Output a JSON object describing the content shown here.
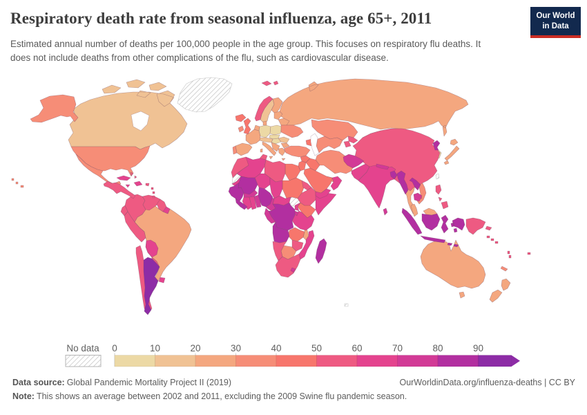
{
  "header": {
    "title": "Respiratory death rate from seasonal influenza, age 65+, 2011",
    "subtitle": "Estimated annual number of deaths per 100,000 people in the age group. This focuses on respiratory flu deaths. It does not include deaths from other complications of the flu, such as cardiovascular disease.",
    "logo": {
      "line1": "Our World",
      "line2": "in Data",
      "bg_color": "#12294e",
      "accent_color": "#cb2d24"
    }
  },
  "legend": {
    "no_data_label": "No data",
    "ticks": [
      "0",
      "10",
      "20",
      "30",
      "40",
      "50",
      "60",
      "70",
      "80",
      "90"
    ],
    "bin_colors": [
      "#ecd9a5",
      "#f0c294",
      "#f4a77f",
      "#f68d77",
      "#f7766c",
      "#ee5a82",
      "#e4438e",
      "#d23a96",
      "#b22fa0",
      "#8d2ca6"
    ],
    "text_color": "#5f5f5f",
    "hatch_line_color": "#c9c9c9",
    "hatch_border_color": "#b5b5b5"
  },
  "footer": {
    "source_label": "Data source:",
    "source_text": "Global Pandemic Mortality Project II (2019)",
    "link_text": "OurWorldinData.org/influenza-deaths | CC BY",
    "note_label": "Note:",
    "note_text": "This shows an average between 2002 and 2011, excluding the 2009 Swine flu pandemic season."
  },
  "chart_data": {
    "type": "choropleth_map",
    "title": "Respiratory death rate from seasonal influenza, age 65+, 2011",
    "unit": "deaths per 100,000 people aged 65+",
    "bin_labels": [
      "0-10",
      "10-20",
      "20-30",
      "30-40",
      "40-50",
      "50-60",
      "60-70",
      "70-80",
      "80-90",
      "90+"
    ],
    "no_data_bin_label": "No data",
    "legend_position": "bottom",
    "countries": [
      {
        "id": "greenland",
        "name": "Greenland",
        "bin": -1
      },
      {
        "id": "western-sahara",
        "name": "Western Sahara",
        "bin": -1
      },
      {
        "id": "south-sudan",
        "name": "South Sudan",
        "bin": -1
      },
      {
        "id": "taiwan",
        "name": "Taiwan",
        "bin": -1
      },
      {
        "id": "kerguelen-islands",
        "name": "Kerguelen Islands",
        "bin": -1
      },
      {
        "id": "germany",
        "name": "Germany",
        "bin": 0
      },
      {
        "id": "poland",
        "name": "Poland",
        "bin": 0
      },
      {
        "id": "czechia-slovakia",
        "name": "Czechia and Slovakia",
        "bin": 0
      },
      {
        "id": "hungary",
        "name": "Hungary",
        "bin": 0
      },
      {
        "id": "south-korea",
        "name": "South Korea",
        "bin": 0
      },
      {
        "id": "canada",
        "name": "Canada",
        "bin": 1
      },
      {
        "id": "sweden",
        "name": "Sweden",
        "bin": 1
      },
      {
        "id": "romania",
        "name": "Romania",
        "bin": 1
      },
      {
        "id": "austria-switzerland",
        "name": "Austria and Switzerland",
        "bin": 1
      },
      {
        "id": "russia",
        "name": "Russia",
        "bin": 2
      },
      {
        "id": "brazil",
        "name": "Brazil",
        "bin": 2
      },
      {
        "id": "france",
        "name": "France",
        "bin": 2
      },
      {
        "id": "benelux",
        "name": "Benelux",
        "bin": 2
      },
      {
        "id": "spain",
        "name": "Spain",
        "bin": 2
      },
      {
        "id": "italy",
        "name": "Italy",
        "bin": 2
      },
      {
        "id": "finland",
        "name": "Finland",
        "bin": 2
      },
      {
        "id": "denmark",
        "name": "Denmark",
        "bin": 2
      },
      {
        "id": "balkans",
        "name": "Balkans",
        "bin": 2
      },
      {
        "id": "bulgaria",
        "name": "Bulgaria",
        "bin": 2
      },
      {
        "id": "greece",
        "name": "Greece",
        "bin": 2
      },
      {
        "id": "baltic-states",
        "name": "Baltic States",
        "bin": 2
      },
      {
        "id": "belarus",
        "name": "Belarus",
        "bin": 2
      },
      {
        "id": "japan",
        "name": "Japan",
        "bin": 2
      },
      {
        "id": "mongolia",
        "name": "Mongolia",
        "bin": 2
      },
      {
        "id": "thailand",
        "name": "Thailand",
        "bin": 2
      },
      {
        "id": "malaysia",
        "name": "Malaysia",
        "bin": 2
      },
      {
        "id": "australia",
        "name": "Australia",
        "bin": 2
      },
      {
        "id": "new-zealand",
        "name": "New Zealand",
        "bin": 2
      },
      {
        "id": "malawi",
        "name": "Malawi",
        "bin": 2
      },
      {
        "id": "united-states",
        "name": "United States",
        "bin": 3
      },
      {
        "id": "mexico",
        "name": "Mexico",
        "bin": 3
      },
      {
        "id": "portugal",
        "name": "Portugal",
        "bin": 3
      },
      {
        "id": "ireland",
        "name": "Ireland",
        "bin": 3
      },
      {
        "id": "ukraine",
        "name": "Ukraine",
        "bin": 3
      },
      {
        "id": "turkey",
        "name": "Turkey",
        "bin": 3
      },
      {
        "id": "kazakhstan",
        "name": "Kazakhstan",
        "bin": 3
      },
      {
        "id": "central-asia",
        "name": "Uzbekistan and Turkmenistan",
        "bin": 3
      },
      {
        "id": "iran",
        "name": "Iran",
        "bin": 3
      },
      {
        "id": "uae",
        "name": "United Arab Emirates",
        "bin": 3
      },
      {
        "id": "vietnam",
        "name": "Vietnam",
        "bin": 3
      },
      {
        "id": "botswana",
        "name": "Botswana",
        "bin": 3
      },
      {
        "id": "new-caledonia",
        "name": "New Caledonia",
        "bin": 3
      },
      {
        "id": "united-kingdom",
        "name": "United Kingdom",
        "bin": 4
      },
      {
        "id": "iceland",
        "name": "Iceland",
        "bin": 4
      },
      {
        "id": "caucasus",
        "name": "Caucasus",
        "bin": 4
      },
      {
        "id": "syria",
        "name": "Syria",
        "bin": 4
      },
      {
        "id": "iraq",
        "name": "Iraq",
        "bin": 4
      },
      {
        "id": "israel-jordan",
        "name": "Israel and Jordan",
        "bin": 4
      },
      {
        "id": "saudi-arabia",
        "name": "Saudi Arabia",
        "bin": 4
      },
      {
        "id": "egypt",
        "name": "Egypt",
        "bin": 4
      },
      {
        "id": "sudan",
        "name": "Sudan",
        "bin": 4
      },
      {
        "id": "kenya",
        "name": "Kenya",
        "bin": 4
      },
      {
        "id": "zambia",
        "name": "Zambia",
        "bin": 4
      },
      {
        "id": "norway",
        "name": "Norway",
        "bin": 5
      },
      {
        "id": "morocco",
        "name": "Morocco",
        "bin": 5
      },
      {
        "id": "tunisia",
        "name": "Tunisia",
        "bin": 5
      },
      {
        "id": "libya",
        "name": "Libya",
        "bin": 5
      },
      {
        "id": "eritrea",
        "name": "Eritrea",
        "bin": 5
      },
      {
        "id": "ethiopia",
        "name": "Ethiopia",
        "bin": 5
      },
      {
        "id": "zimbabwe",
        "name": "Zimbabwe",
        "bin": 5
      },
      {
        "id": "namibia",
        "name": "Namibia",
        "bin": 5
      },
      {
        "id": "south-africa",
        "name": "South Africa",
        "bin": 5
      },
      {
        "id": "china",
        "name": "China",
        "bin": 5
      },
      {
        "id": "kyrgyzstan",
        "name": "Kyrgyzstan",
        "bin": 5
      },
      {
        "id": "tajikistan",
        "name": "Tajikistan",
        "bin": 5
      },
      {
        "id": "philippines",
        "name": "Philippines",
        "bin": 5
      },
      {
        "id": "papua-new-guinea",
        "name": "Papua New Guinea",
        "bin": 5
      },
      {
        "id": "solomon-islands",
        "name": "Solomon Islands",
        "bin": 5
      },
      {
        "id": "vanuatu",
        "name": "Vanuatu",
        "bin": 5
      },
      {
        "id": "fiji",
        "name": "Fiji",
        "bin": 5
      },
      {
        "id": "colombia",
        "name": "Colombia",
        "bin": 5
      },
      {
        "id": "venezuela",
        "name": "Venezuela",
        "bin": 5
      },
      {
        "id": "guyana",
        "name": "Guyana",
        "bin": 5
      },
      {
        "id": "ecuador",
        "name": "Ecuador",
        "bin": 5
      },
      {
        "id": "peru",
        "name": "Peru",
        "bin": 5
      },
      {
        "id": "chile",
        "name": "Chile",
        "bin": 5
      },
      {
        "id": "paraguay",
        "name": "Paraguay",
        "bin": 5
      },
      {
        "id": "central-america",
        "name": "Central America",
        "bin": 5
      },
      {
        "id": "lesser-antilles",
        "name": "Lesser Antilles",
        "bin": 5
      },
      {
        "id": "puerto-rico",
        "name": "Puerto Rico",
        "bin": 5
      },
      {
        "id": "bahamas",
        "name": "Bahamas",
        "bin": 5
      },
      {
        "id": "algeria",
        "name": "Algeria",
        "bin": 6
      },
      {
        "id": "mauritania",
        "name": "Mauritania",
        "bin": 6
      },
      {
        "id": "niger",
        "name": "Niger",
        "bin": 6
      },
      {
        "id": "chad",
        "name": "Chad",
        "bin": 6
      },
      {
        "id": "somalia",
        "name": "Somalia",
        "bin": 6
      },
      {
        "id": "ivory-coast",
        "name": "Cote d'Ivoire",
        "bin": 6
      },
      {
        "id": "ghana",
        "name": "Ghana",
        "bin": 6
      },
      {
        "id": "central-african-republic",
        "name": "Central African Republic",
        "bin": 6
      },
      {
        "id": "uganda",
        "name": "Uganda",
        "bin": 6
      },
      {
        "id": "tanzania",
        "name": "Tanzania",
        "bin": 6
      },
      {
        "id": "mozambique",
        "name": "Mozambique",
        "bin": 6
      },
      {
        "id": "yemen",
        "name": "Yemen",
        "bin": 6
      },
      {
        "id": "oman",
        "name": "Oman",
        "bin": 6
      },
      {
        "id": "pakistan",
        "name": "Pakistan",
        "bin": 6
      },
      {
        "id": "india",
        "name": "India",
        "bin": 6
      },
      {
        "id": "cuba",
        "name": "Cuba",
        "bin": 6
      },
      {
        "id": "hispaniola",
        "name": "Hispaniola",
        "bin": 6
      },
      {
        "id": "jamaica",
        "name": "Jamaica",
        "bin": 6
      },
      {
        "id": "bolivia",
        "name": "Bolivia",
        "bin": 6
      },
      {
        "id": "uruguay",
        "name": "Uruguay",
        "bin": 6
      },
      {
        "id": "suriname",
        "name": "Suriname",
        "bin": 6
      },
      {
        "id": "burkina-faso",
        "name": "Burkina Faso",
        "bin": 7
      },
      {
        "id": "togo-benin",
        "name": "Togo and Benin",
        "bin": 7
      },
      {
        "id": "cameroon",
        "name": "Cameroon",
        "bin": 7
      },
      {
        "id": "congo-gabon",
        "name": "Congo and Gabon",
        "bin": 7
      },
      {
        "id": "rwanda-burundi",
        "name": "Rwanda and Burundi",
        "bin": 7
      },
      {
        "id": "lesotho",
        "name": "Lesotho",
        "bin": 7
      },
      {
        "id": "afghanistan",
        "name": "Afghanistan",
        "bin": 7
      },
      {
        "id": "nepal",
        "name": "Nepal",
        "bin": 7
      },
      {
        "id": "cambodia",
        "name": "Cambodia",
        "bin": 7
      },
      {
        "id": "sri-lanka",
        "name": "Sri Lanka",
        "bin": 7
      },
      {
        "id": "mali",
        "name": "Mali",
        "bin": 8
      },
      {
        "id": "senegal-guinea",
        "name": "Senegal and Guinea",
        "bin": 8
      },
      {
        "id": "sierra-leone-liberia",
        "name": "Sierra Leone and Liberia",
        "bin": 8
      },
      {
        "id": "nigeria",
        "name": "Nigeria",
        "bin": 8
      },
      {
        "id": "dr-congo",
        "name": "Democratic Republic of Congo",
        "bin": 8
      },
      {
        "id": "angola",
        "name": "Angola",
        "bin": 8
      },
      {
        "id": "madagascar",
        "name": "Madagascar",
        "bin": 8
      },
      {
        "id": "myanmar",
        "name": "Myanmar",
        "bin": 8
      },
      {
        "id": "laos",
        "name": "Laos",
        "bin": 8
      },
      {
        "id": "bangladesh",
        "name": "Bangladesh",
        "bin": 8
      },
      {
        "id": "indonesia",
        "name": "Indonesia",
        "bin": 8
      },
      {
        "id": "north-korea",
        "name": "North Korea",
        "bin": 8
      },
      {
        "id": "argentina",
        "name": "Argentina",
        "bin": 9
      }
    ]
  }
}
